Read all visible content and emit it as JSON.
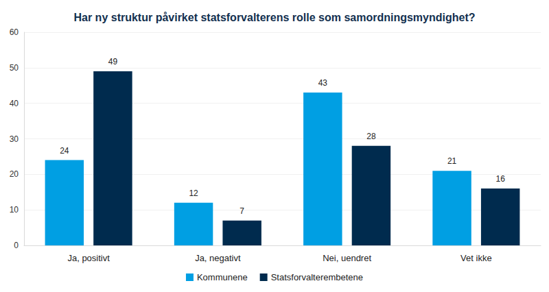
{
  "chart_data": {
    "type": "bar",
    "title": "Har ny struktur påvirket statsforvalterens rolle som samordningsmyndighet?",
    "categories": [
      "Ja, positivt",
      "Ja, negativt",
      "Nei, uendret",
      "Vet ikke"
    ],
    "series": [
      {
        "name": "Kommunene",
        "color": "#009fe3",
        "values": [
          24,
          12,
          43,
          21
        ]
      },
      {
        "name": "Statsforvalterembetene",
        "color": "#002b4e",
        "values": [
          49,
          7,
          28,
          16
        ]
      }
    ],
    "ylim": [
      0,
      60
    ],
    "yticks": [
      0,
      10,
      20,
      30,
      40,
      50,
      60
    ],
    "grid": true,
    "legend": "bottom",
    "data_labels": true
  }
}
